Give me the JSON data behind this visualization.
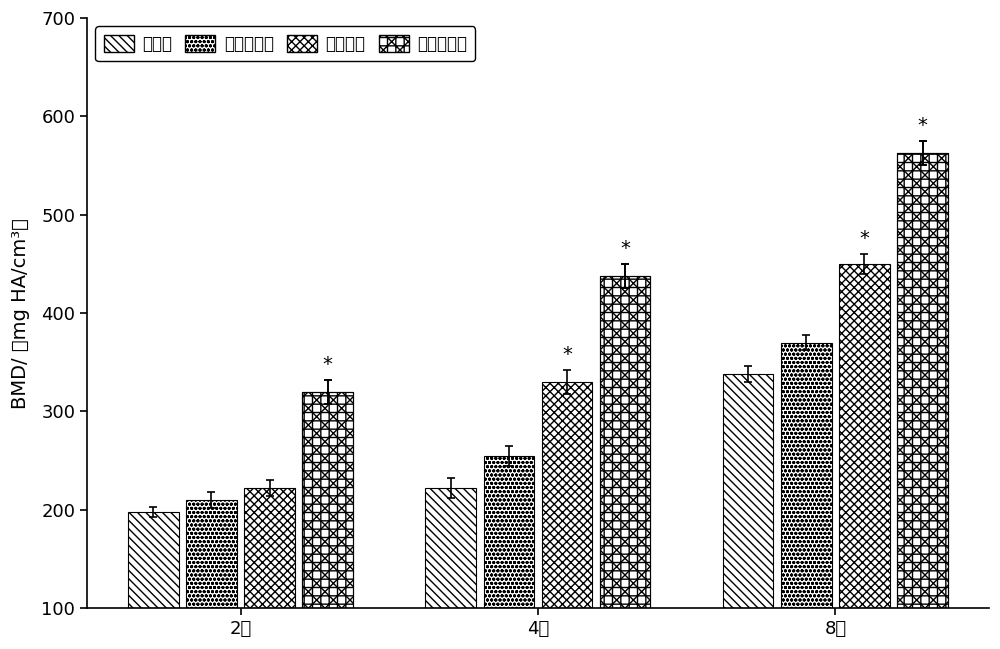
{
  "groups": [
    "2周",
    "4周",
    "8周"
  ],
  "series_labels": [
    "对照组",
    "细胞片层组",
    "纤维膜组",
    "人工骨膜组"
  ],
  "values": [
    [
      198,
      210,
      222,
      320
    ],
    [
      222,
      255,
      330,
      438
    ],
    [
      338,
      370,
      450,
      563
    ]
  ],
  "errors": [
    [
      5,
      8,
      8,
      12
    ],
    [
      10,
      10,
      12,
      12
    ],
    [
      8,
      8,
      10,
      12
    ]
  ],
  "star_annotations": {
    "0": [
      3
    ],
    "1": [
      2,
      3
    ],
    "2": [
      2,
      3
    ]
  },
  "ylabel": "BMD/ （mg HA/cm³）",
  "ylim": [
    100,
    700
  ],
  "yticks": [
    100,
    200,
    300,
    400,
    500,
    600,
    700
  ],
  "background_color": "#ffffff",
  "bar_width": 0.17,
  "fontsize_labels": 14,
  "fontsize_ticks": 13,
  "fontsize_legend": 12
}
